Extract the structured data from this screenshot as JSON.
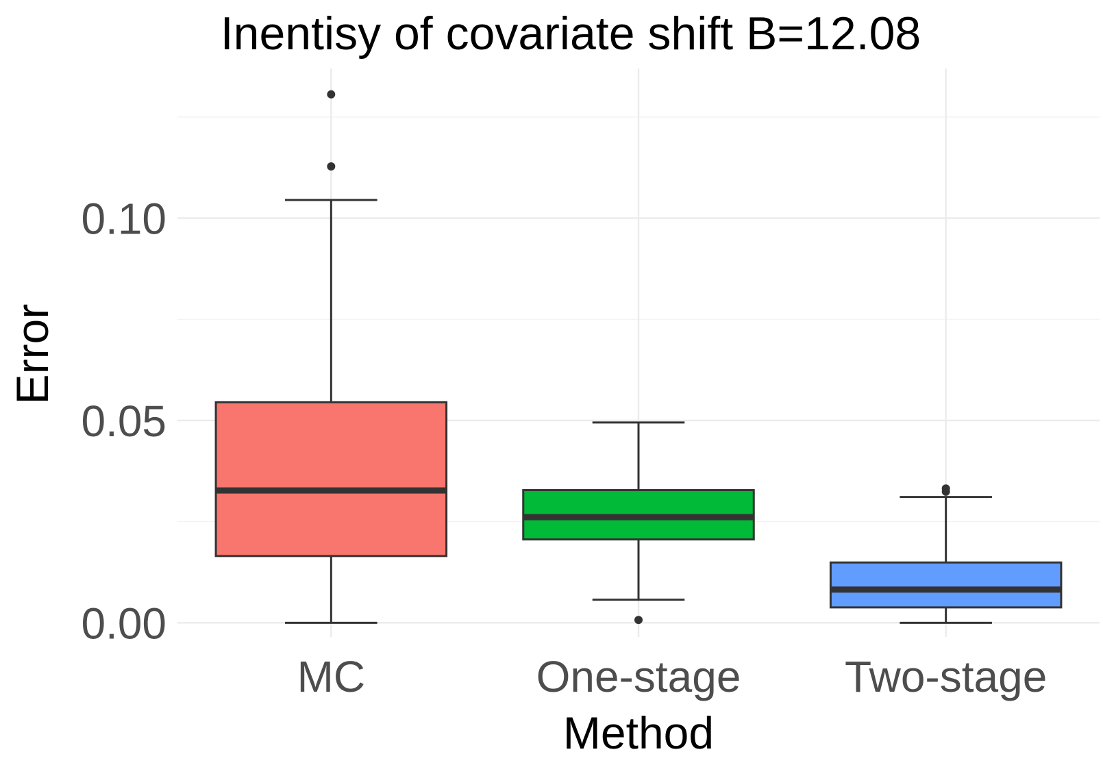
{
  "chart_data": {
    "type": "box",
    "title": "Inentisy of covariate shift B=12.08",
    "xlabel": "Method",
    "ylabel": "Error",
    "ylim": [
      -0.0035,
      0.137
    ],
    "yticks": [
      0.0,
      0.05,
      0.1
    ],
    "ytick_labels": [
      "0.00",
      "0.05",
      "0.10"
    ],
    "yminor": [
      0.025,
      0.075,
      0.125
    ],
    "grid": true,
    "categories": [
      "MC",
      "One-stage",
      "Two-stage"
    ],
    "series": [
      {
        "name": "MC",
        "color": "#F8766D",
        "whisker_low": 0.0,
        "q1": 0.0165,
        "median": 0.0327,
        "q3": 0.0545,
        "whisker_high": 0.1045,
        "outliers": [
          0.1128,
          0.1306
        ]
      },
      {
        "name": "One-stage",
        "color": "#00BA38",
        "whisker_low": 0.0057,
        "q1": 0.0206,
        "median": 0.0261,
        "q3": 0.0328,
        "whisker_high": 0.0495,
        "outliers": [
          0.0007
        ]
      },
      {
        "name": "Two-stage",
        "color": "#619CFF",
        "whisker_low": 0.0,
        "q1": 0.0038,
        "median": 0.0082,
        "q3": 0.0149,
        "whisker_high": 0.0311,
        "outliers": [
          0.0324,
          0.0332
        ]
      }
    ]
  }
}
